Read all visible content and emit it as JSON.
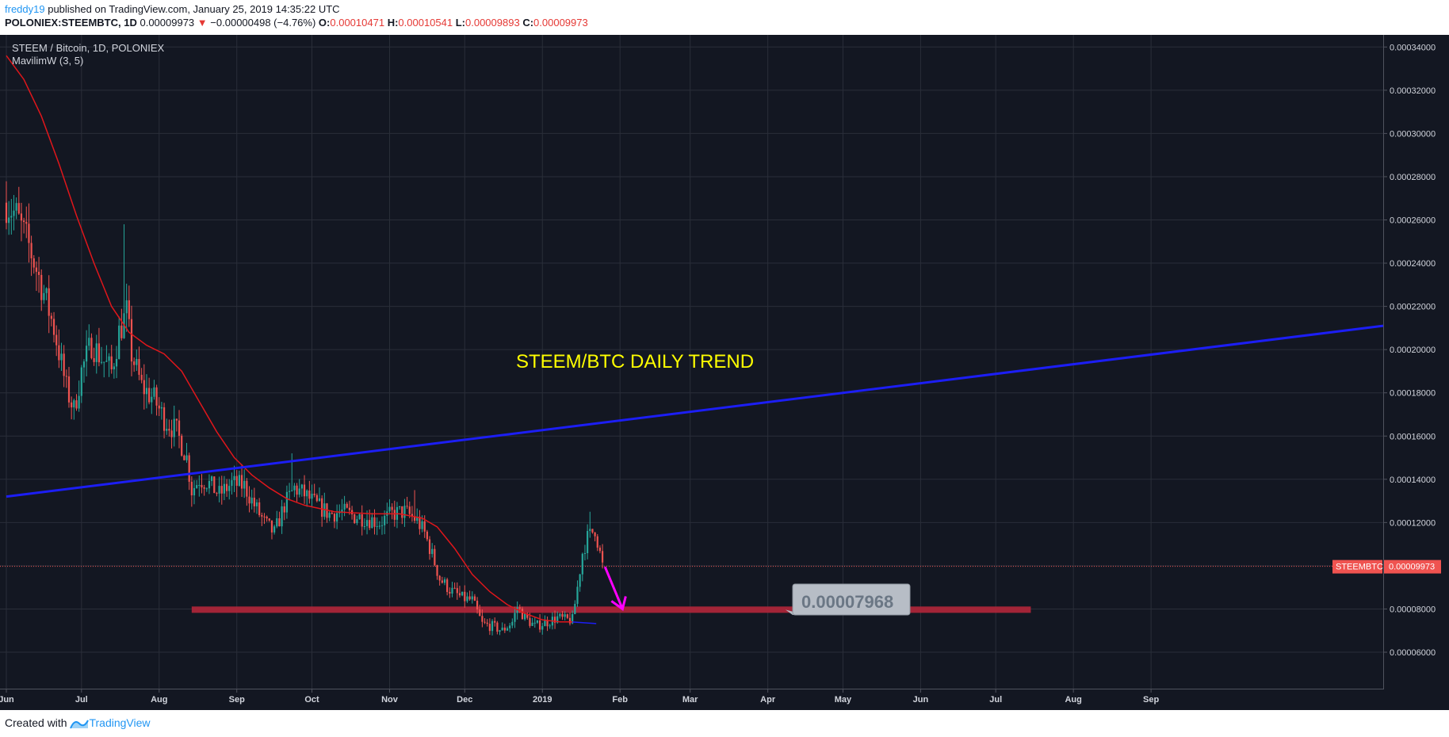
{
  "header": {
    "user": "freddy19",
    "published": "published on TradingView.com, January 25, 2019 14:35:22 UTC",
    "symbol": "POLONIEX:STEEMBTC, 1D",
    "last": "0.00009973",
    "change": "−0.00000498 (−4.76%)",
    "o_label": "O:",
    "o_value": "0.00010471",
    "h_label": "H:",
    "h_value": "0.00010541",
    "l_label": "L:",
    "l_value": "0.00009893",
    "c_label": "C:",
    "c_value": "0.00009973"
  },
  "legend": {
    "title": "STEEM / Bitcoin, 1D, POLONIEX",
    "indicator": "MavilimW (3, 5)"
  },
  "annotations": {
    "trend_text": "STEEM/BTC DAILY TREND",
    "callout_price": "0.00007968",
    "price_tag_symbol": "STEEMBTC",
    "price_tag_value": "0.00009973"
  },
  "footer": {
    "created_with": "Created with",
    "brand": "TradingView"
  },
  "colors": {
    "background": "#131722",
    "grid": "#2a2e39",
    "up": "#26a69a",
    "down": "#ef5350",
    "ma": "#e0161b",
    "trendline": "#1c1ef5",
    "support": "#b2263a",
    "arrow": "#ff00ff",
    "trend_text": "#ffff00",
    "callout_bg": "#b7bdc6",
    "callout_text": "#6b7785"
  },
  "chart_data": {
    "type": "candlestick",
    "title": "STEEM / Bitcoin, 1D, POLONIEX",
    "x_tick_labels": [
      "Jun",
      "Jul",
      "Aug",
      "Sep",
      "Oct",
      "Nov",
      "Dec",
      "2019",
      "Feb",
      "Mar",
      "Apr",
      "May",
      "Jun",
      "Jul",
      "Aug",
      "Sep"
    ],
    "y_tick_labels": [
      "0.00034000",
      "0.00032000",
      "0.00030000",
      "0.00028000",
      "0.00026000",
      "0.00024000",
      "0.00022000",
      "0.00020000",
      "0.00018000",
      "0.00016000",
      "0.00014000",
      "0.00012000",
      "0.00010000",
      "0.00008000",
      "0.00006000"
    ],
    "ylim": [
      5.35e-05,
      0.00035
    ],
    "x_range": [
      "2018-06-01",
      "2019-09-20"
    ],
    "price_path": [
      [
        "2018-06-01",
        0.000268
      ],
      [
        "2018-06-05",
        0.000262
      ],
      [
        "2018-06-10",
        0.000248
      ],
      [
        "2018-06-15",
        0.00023
      ],
      [
        "2018-06-20",
        0.00021
      ],
      [
        "2018-06-25",
        0.000182
      ],
      [
        "2018-06-28",
        0.000172
      ],
      [
        "2018-07-01",
        0.00019
      ],
      [
        "2018-07-05",
        0.000203
      ],
      [
        "2018-07-09",
        0.000196
      ],
      [
        "2018-07-13",
        0.00019
      ],
      [
        "2018-07-16",
        0.000208
      ],
      [
        "2018-07-19",
        0.000217
      ],
      [
        "2018-07-21",
        0.000198
      ],
      [
        "2018-07-25",
        0.000183
      ],
      [
        "2018-07-30",
        0.000177
      ],
      [
        "2018-08-03",
        0.000168
      ],
      [
        "2018-08-08",
        0.000162
      ],
      [
        "2018-08-12",
        0.00015
      ],
      [
        "2018-08-14",
        0.000135
      ],
      [
        "2018-08-17",
        0.00014
      ],
      [
        "2018-08-20",
        0.000139
      ],
      [
        "2018-08-25",
        0.000133
      ],
      [
        "2018-08-30",
        0.000138
      ],
      [
        "2018-09-04",
        0.000137
      ],
      [
        "2018-09-08",
        0.000128
      ],
      [
        "2018-09-12",
        0.00012
      ],
      [
        "2018-09-16",
        0.000115
      ],
      [
        "2018-09-20",
        0.000128
      ],
      [
        "2018-09-24",
        0.000136
      ],
      [
        "2018-09-28",
        0.000133
      ],
      [
        "2018-10-03",
        0.000128
      ],
      [
        "2018-10-08",
        0.000124
      ],
      [
        "2018-10-13",
        0.000125
      ],
      [
        "2018-10-18",
        0.000123
      ],
      [
        "2018-10-23",
        0.000122
      ],
      [
        "2018-10-28",
        0.00012
      ],
      [
        "2018-11-02",
        0.000124
      ],
      [
        "2018-11-07",
        0.000125
      ],
      [
        "2018-11-12",
        0.000121
      ],
      [
        "2018-11-15",
        0.000115
      ],
      [
        "2018-11-18",
        0.000105
      ],
      [
        "2018-11-21",
        9.4e-05
      ],
      [
        "2018-11-25",
        8.9e-05
      ],
      [
        "2018-11-30",
        8.5e-05
      ],
      [
        "2018-12-04",
        8.4e-05
      ],
      [
        "2018-12-08",
        7.3e-05
      ],
      [
        "2018-12-12",
        7.2e-05
      ],
      [
        "2018-12-16",
        7e-05
      ],
      [
        "2018-12-20",
        7.4e-05
      ],
      [
        "2018-12-22",
        8.1e-05
      ],
      [
        "2018-12-25",
        7.6e-05
      ],
      [
        "2018-12-29",
        7.2e-05
      ],
      [
        "2019-01-03",
        7.4e-05
      ],
      [
        "2019-01-07",
        7.6e-05
      ],
      [
        "2019-01-10",
        7.5e-05
      ],
      [
        "2019-01-13",
        7.5e-05
      ],
      [
        "2019-01-15",
        9e-05
      ],
      [
        "2019-01-17",
        0.000106
      ],
      [
        "2019-01-19",
        0.000113
      ],
      [
        "2019-01-22",
        0.000117
      ],
      [
        "2019-01-25",
        0.0001
      ]
    ],
    "ma_series": {
      "name": "MavilimW (3, 5)",
      "points": [
        [
          "2018-06-01",
          0.000336
        ],
        [
          "2018-06-08",
          0.000325
        ],
        [
          "2018-06-15",
          0.000308
        ],
        [
          "2018-06-22",
          0.000286
        ],
        [
          "2018-06-29",
          0.000262
        ],
        [
          "2018-07-06",
          0.00024
        ],
        [
          "2018-07-13",
          0.00022
        ],
        [
          "2018-07-20",
          0.000208
        ],
        [
          "2018-07-27",
          0.000202
        ],
        [
          "2018-08-03",
          0.000198
        ],
        [
          "2018-08-10",
          0.00019
        ],
        [
          "2018-08-17",
          0.000176
        ],
        [
          "2018-08-24",
          0.000162
        ],
        [
          "2018-08-31",
          0.00015
        ],
        [
          "2018-09-07",
          0.000142
        ],
        [
          "2018-09-14",
          0.000136
        ],
        [
          "2018-09-21",
          0.000131
        ],
        [
          "2018-09-28",
          0.000128
        ],
        [
          "2018-10-10",
          0.000125
        ],
        [
          "2018-10-25",
          0.000124
        ],
        [
          "2018-11-05",
          0.000124
        ],
        [
          "2018-11-14",
          0.000122
        ],
        [
          "2018-11-20",
          0.000118
        ],
        [
          "2018-11-27",
          0.000108
        ],
        [
          "2018-12-04",
          9.6e-05
        ],
        [
          "2018-12-11",
          8.8e-05
        ],
        [
          "2018-12-18",
          8.2e-05
        ],
        [
          "2018-12-25",
          7.8e-05
        ],
        [
          "2019-01-01",
          7.5e-05
        ],
        [
          "2019-01-08",
          7.4e-05
        ],
        [
          "2019-01-13",
          7.4e-05
        ]
      ]
    },
    "trendline": {
      "from": [
        "2018-06-01",
        0.000132
      ],
      "to": [
        "2019-09-20",
        0.000211
      ]
    },
    "support_band": {
      "from": "2018-08-14",
      "to": "2019-07-15",
      "value": 7.968e-05
    },
    "last_price_line": 9.973e-05,
    "arrow": {
      "from": [
        "2019-01-26",
        9.95e-05
      ],
      "to": [
        "2019-02-02",
        8e-05
      ]
    },
    "grid": true
  }
}
